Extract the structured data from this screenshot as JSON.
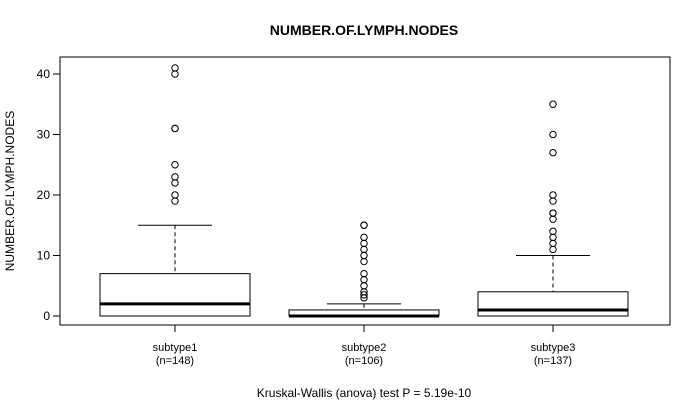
{
  "chart_data": {
    "type": "boxplot",
    "title": "NUMBER.OF.LYMPH.NODES",
    "ylabel": "NUMBER.OF.LYMPH.NODES",
    "xlabel": "",
    "ylim": [
      -1.5,
      43
    ],
    "yticks": [
      0,
      10,
      20,
      30,
      40
    ],
    "footer": "Kruskal-Wallis (anova) test P = 5.19e-10",
    "groups": [
      {
        "name": "subtype1",
        "n_label": "(n=148)",
        "min": 0,
        "q1": 0,
        "median": 2,
        "q3": 7,
        "whisker_high": 15,
        "outliers": [
          19,
          20,
          22,
          23,
          25,
          31,
          31,
          40,
          41
        ]
      },
      {
        "name": "subtype2",
        "n_label": "(n=106)",
        "min": 0,
        "q1": 0,
        "median": 0,
        "q3": 1,
        "whisker_high": 2,
        "outliers": [
          3,
          3.5,
          4,
          5,
          6,
          7,
          9,
          10,
          11,
          12,
          13,
          15,
          15
        ]
      },
      {
        "name": "subtype3",
        "n_label": "(n=137)",
        "min": 0,
        "q1": 0,
        "median": 1,
        "q3": 4,
        "whisker_high": 10,
        "outliers": [
          11,
          12,
          13,
          14,
          16,
          17,
          17,
          19,
          20,
          27,
          30,
          35
        ]
      }
    ]
  }
}
